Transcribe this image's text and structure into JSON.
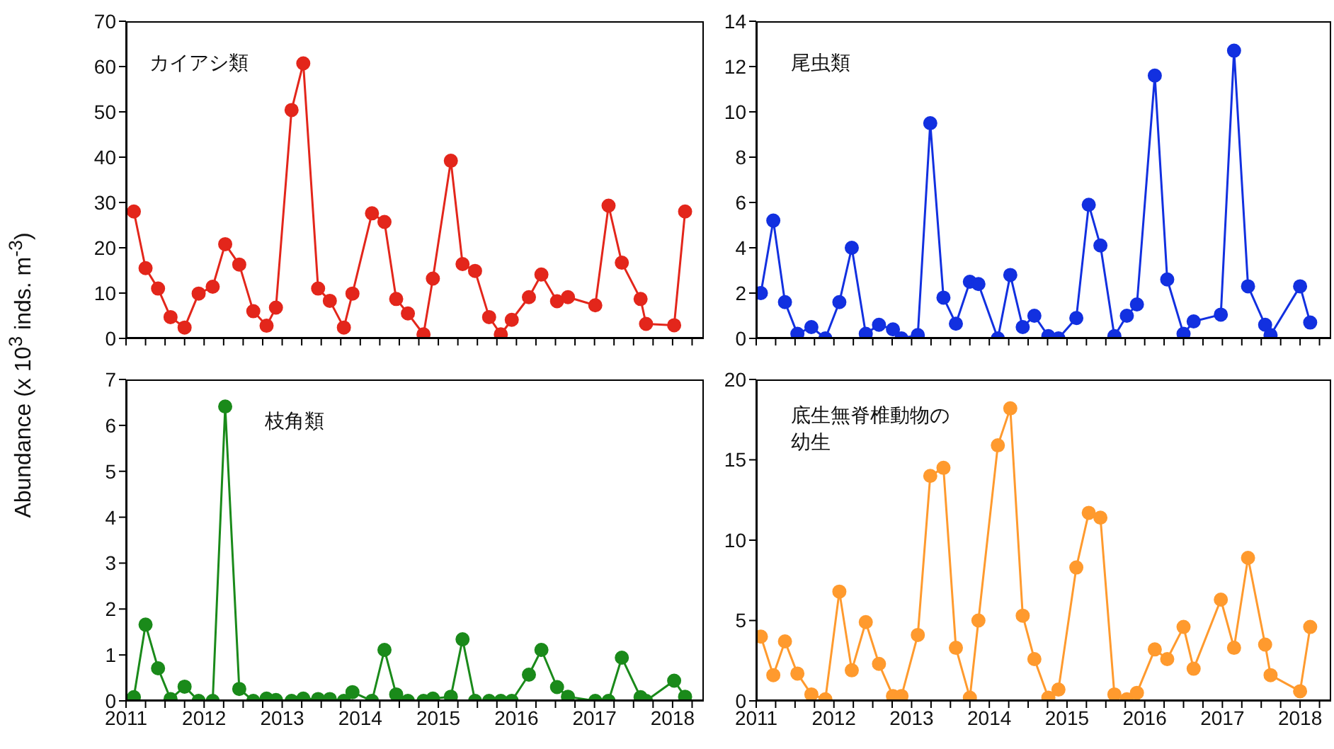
{
  "chart_data": [
    {
      "type": "line",
      "ylabel": "Abundance (x 10$^{3}$ inds. m$^{-3}$)",
      "x": [
        2011.1,
        2011.25,
        2011.41,
        2011.57,
        2011.75,
        2011.93,
        2012.11,
        2012.27,
        2012.45,
        2012.63,
        2012.8,
        2012.92,
        2013.12,
        2013.27,
        2013.46,
        2013.61,
        2013.79,
        2013.9,
        2014.15,
        2014.31,
        2014.46,
        2014.61,
        2014.81,
        2014.93,
        2015.16,
        2015.31,
        2015.47,
        2015.65,
        2015.8,
        2015.94,
        2016.16,
        2016.32,
        2016.52,
        2016.66,
        2017.01,
        2017.18,
        2017.35,
        2017.59,
        2017.66,
        2018.02,
        2018.16
      ],
      "series": [
        {
          "name": "カイアシ類",
          "color": "#e3261b",
          "values": [
            28.0,
            15.5,
            11.0,
            4.7,
            2.4,
            9.9,
            11.4,
            20.8,
            16.3,
            6.0,
            2.8,
            6.8,
            50.4,
            60.7,
            11.0,
            8.3,
            2.4,
            9.9,
            27.6,
            25.7,
            8.7,
            5.5,
            0.9,
            13.2,
            39.2,
            16.4,
            14.9,
            4.7,
            0.9,
            4.1,
            9.1,
            14.1,
            8.2,
            9.1,
            7.3,
            29.3,
            16.7,
            8.7,
            3.2,
            2.9,
            28.0
          ]
        }
      ],
      "xlim": [
        2011,
        2018.4
      ],
      "xticks": [
        2011,
        {
          "value": 2011.25,
          "label": null
        },
        {
          "value": 2011.5,
          "label": null
        },
        {
          "value": 2011.75,
          "label": null
        },
        2012,
        {
          "value": 2012.25,
          "label": null
        },
        {
          "value": 2012.5,
          "label": null
        },
        {
          "value": 2012.75,
          "label": null
        },
        2013,
        {
          "value": 2013.25,
          "label": null
        },
        {
          "value": 2013.5,
          "label": null
        },
        {
          "value": 2013.75,
          "label": null
        },
        2014,
        {
          "value": 2014.25,
          "label": null
        },
        {
          "value": 2014.5,
          "label": null
        },
        {
          "value": 2014.75,
          "label": null
        },
        2015,
        {
          "value": 2015.25,
          "label": null
        },
        {
          "value": 2015.5,
          "label": null
        },
        {
          "value": 2015.75,
          "label": null
        },
        2016,
        {
          "value": 2016.25,
          "label": null
        },
        {
          "value": 2016.5,
          "label": null
        },
        {
          "value": 2016.75,
          "label": null
        },
        2017,
        {
          "value": 2017.25,
          "label": null
        },
        {
          "value": 2017.5,
          "label": null
        },
        {
          "value": 2017.75,
          "label": null
        },
        2018,
        {
          "value": 2018.25,
          "label": null
        }
      ],
      "ylim": [
        0,
        70
      ],
      "yticks": [
        0,
        10,
        20,
        30,
        40,
        50,
        60,
        70
      ],
      "tick_labels": "y",
      "marker": "circle",
      "line_style": "solid"
    },
    {
      "type": "line",
      "x": [
        2011.06,
        2011.22,
        2011.37,
        2011.53,
        2011.71,
        2011.89,
        2012.07,
        2012.23,
        2012.41,
        2012.58,
        2012.76,
        2012.87,
        2013.08,
        2013.24,
        2013.41,
        2013.57,
        2013.75,
        2013.86,
        2014.11,
        2014.27,
        2014.43,
        2014.58,
        2014.76,
        2014.89,
        2015.12,
        2015.28,
        2015.43,
        2015.61,
        2015.77,
        2015.9,
        2016.13,
        2016.29,
        2016.5,
        2016.63,
        2016.98,
        2017.15,
        2017.33,
        2017.55,
        2017.62,
        2018.0,
        2018.13
      ],
      "series": [
        {
          "name": "尾虫類",
          "color": "#1230e0",
          "values": [
            2.0,
            5.2,
            1.6,
            0.2,
            0.5,
            0.0,
            1.6,
            4.0,
            0.2,
            0.6,
            0.4,
            0.0,
            0.15,
            9.5,
            1.8,
            0.65,
            2.5,
            2.4,
            0.0,
            2.8,
            0.5,
            1.0,
            0.1,
            0.0,
            0.9,
            5.9,
            4.1,
            0.1,
            1.0,
            1.5,
            11.6,
            2.6,
            0.2,
            0.75,
            1.05,
            12.7,
            2.3,
            0.6,
            0.15,
            2.3,
            0.7
          ]
        }
      ],
      "xlim": [
        2011,
        2018.4
      ],
      "xticks": [
        2011,
        {
          "value": 2011.25,
          "label": null
        },
        {
          "value": 2011.5,
          "label": null
        },
        {
          "value": 2011.75,
          "label": null
        },
        2012,
        {
          "value": 2012.25,
          "label": null
        },
        {
          "value": 2012.5,
          "label": null
        },
        {
          "value": 2012.75,
          "label": null
        },
        2013,
        {
          "value": 2013.25,
          "label": null
        },
        {
          "value": 2013.5,
          "label": null
        },
        {
          "value": 2013.75,
          "label": null
        },
        2014,
        {
          "value": 2014.25,
          "label": null
        },
        {
          "value": 2014.5,
          "label": null
        },
        {
          "value": 2014.75,
          "label": null
        },
        2015,
        {
          "value": 2015.25,
          "label": null
        },
        {
          "value": 2015.5,
          "label": null
        },
        {
          "value": 2015.75,
          "label": null
        },
        2016,
        {
          "value": 2016.25,
          "label": null
        },
        {
          "value": 2016.5,
          "label": null
        },
        {
          "value": 2016.75,
          "label": null
        },
        2017,
        {
          "value": 2017.25,
          "label": null
        },
        {
          "value": 2017.5,
          "label": null
        },
        {
          "value": 2017.75,
          "label": null
        },
        2018,
        {
          "value": 2018.25,
          "label": null
        }
      ],
      "ylim": [
        0,
        14
      ],
      "yticks": [
        0,
        2,
        4,
        6,
        8,
        10,
        12,
        14
      ],
      "tick_labels": "y",
      "marker": "circle",
      "line_style": "solid"
    },
    {
      "type": "line",
      "x": [
        2011.1,
        2011.25,
        2011.41,
        2011.57,
        2011.75,
        2011.93,
        2012.11,
        2012.27,
        2012.45,
        2012.63,
        2012.8,
        2012.92,
        2013.12,
        2013.27,
        2013.46,
        2013.61,
        2013.79,
        2013.9,
        2014.15,
        2014.31,
        2014.46,
        2014.61,
        2014.81,
        2014.93,
        2015.16,
        2015.31,
        2015.47,
        2015.65,
        2015.8,
        2015.94,
        2016.16,
        2016.32,
        2016.52,
        2016.66,
        2017.01,
        2017.18,
        2017.35,
        2017.59,
        2017.66,
        2018.02,
        2018.16
      ],
      "series": [
        {
          "name": "枝角類",
          "color": "#1a8a1a",
          "values": [
            0.08,
            1.66,
            0.71,
            0.04,
            0.31,
            0.0,
            0.0,
            6.41,
            0.26,
            0.0,
            0.05,
            0.02,
            0.0,
            0.05,
            0.04,
            0.04,
            0.0,
            0.19,
            0.0,
            1.11,
            0.14,
            0.0,
            0.0,
            0.05,
            0.09,
            1.34,
            0.0,
            0.0,
            0.0,
            0.0,
            0.57,
            1.11,
            0.3,
            0.09,
            0.0,
            0.0,
            0.94,
            0.08,
            0.0,
            0.44,
            0.09
          ]
        }
      ],
      "xlim": [
        2011,
        2018.4
      ],
      "xticks": [
        2011,
        {
          "value": 2011.25,
          "label": null
        },
        {
          "value": 2011.5,
          "label": null
        },
        {
          "value": 2011.75,
          "label": null
        },
        2012,
        {
          "value": 2012.25,
          "label": null
        },
        {
          "value": 2012.5,
          "label": null
        },
        {
          "value": 2012.75,
          "label": null
        },
        2013,
        {
          "value": 2013.25,
          "label": null
        },
        {
          "value": 2013.5,
          "label": null
        },
        {
          "value": 2013.75,
          "label": null
        },
        2014,
        {
          "value": 2014.25,
          "label": null
        },
        {
          "value": 2014.5,
          "label": null
        },
        {
          "value": 2014.75,
          "label": null
        },
        2015,
        {
          "value": 2015.25,
          "label": null
        },
        {
          "value": 2015.5,
          "label": null
        },
        {
          "value": 2015.75,
          "label": null
        },
        2016,
        {
          "value": 2016.25,
          "label": null
        },
        {
          "value": 2016.5,
          "label": null
        },
        {
          "value": 2016.75,
          "label": null
        },
        2017,
        {
          "value": 2017.25,
          "label": null
        },
        {
          "value": 2017.5,
          "label": null
        },
        {
          "value": 2017.75,
          "label": null
        },
        2018,
        {
          "value": 2018.25,
          "label": null
        }
      ],
      "ylim": [
        0,
        7
      ],
      "yticks": [
        0,
        1,
        2,
        3,
        4,
        5,
        6,
        7
      ],
      "marker": "circle",
      "line_style": "solid"
    },
    {
      "type": "line",
      "x": [
        2011.06,
        2011.22,
        2011.37,
        2011.53,
        2011.71,
        2011.89,
        2012.07,
        2012.23,
        2012.41,
        2012.58,
        2012.76,
        2012.87,
        2013.08,
        2013.24,
        2013.41,
        2013.57,
        2013.75,
        2013.86,
        2014.11,
        2014.27,
        2014.43,
        2014.58,
        2014.76,
        2014.89,
        2015.12,
        2015.28,
        2015.43,
        2015.61,
        2015.77,
        2015.9,
        2016.13,
        2016.29,
        2016.5,
        2016.63,
        2016.98,
        2017.15,
        2017.33,
        2017.55,
        2017.62,
        2018.0,
        2018.13
      ],
      "series": [
        {
          "name": "底生無脊椎動物の幼生",
          "color": "#ff9a2e",
          "values": [
            4.0,
            1.6,
            3.7,
            1.7,
            0.4,
            0.1,
            6.8,
            1.9,
            4.9,
            2.3,
            0.3,
            0.3,
            4.1,
            14.0,
            14.5,
            3.3,
            0.2,
            5.0,
            15.9,
            18.2,
            5.3,
            2.6,
            0.2,
            0.7,
            8.3,
            11.7,
            11.4,
            0.4,
            0.1,
            0.5,
            3.2,
            2.6,
            4.6,
            2.0,
            6.3,
            3.3,
            8.9,
            3.5,
            1.6,
            0.6,
            4.6
          ]
        }
      ],
      "xlim": [
        2011,
        2018.4
      ],
      "xticks": [
        2011,
        {
          "value": 2011.25,
          "label": null
        },
        {
          "value": 2011.5,
          "label": null
        },
        {
          "value": 2011.75,
          "label": null
        },
        2012,
        {
          "value": 2012.25,
          "label": null
        },
        {
          "value": 2012.5,
          "label": null
        },
        {
          "value": 2012.75,
          "label": null
        },
        2013,
        {
          "value": 2013.25,
          "label": null
        },
        {
          "value": 2013.5,
          "label": null
        },
        {
          "value": 2013.75,
          "label": null
        },
        2014,
        {
          "value": 2014.25,
          "label": null
        },
        {
          "value": 2014.5,
          "label": null
        },
        {
          "value": 2014.75,
          "label": null
        },
        2015,
        {
          "value": 2015.25,
          "label": null
        },
        {
          "value": 2015.5,
          "label": null
        },
        {
          "value": 2015.75,
          "label": null
        },
        2016,
        {
          "value": 2016.25,
          "label": null
        },
        {
          "value": 2016.5,
          "label": null
        },
        {
          "value": 2016.75,
          "label": null
        },
        2017,
        {
          "value": 2017.25,
          "label": null
        },
        {
          "value": 2017.5,
          "label": null
        },
        {
          "value": 2017.75,
          "label": null
        },
        2018,
        {
          "value": 2018.25,
          "label": null
        }
      ],
      "ylim": [
        0,
        20
      ],
      "yticks": [
        0,
        5,
        10,
        15,
        20
      ],
      "marker": "circle",
      "line_style": "solid"
    }
  ]
}
